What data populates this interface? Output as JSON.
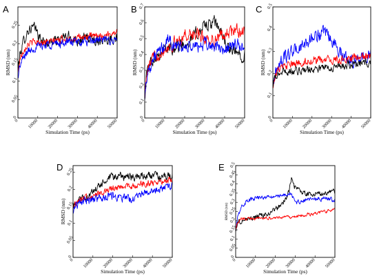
{
  "chart_data": [
    {
      "panel": "A",
      "type": "line",
      "xlabel": "Simulation Time (ps)",
      "ylabel": "RMSD (nm)",
      "xlim": [
        0,
        50000
      ],
      "ylim": [
        0,
        0.3
      ],
      "xticks": [
        0,
        10000,
        20000,
        30000,
        40000,
        50000
      ],
      "yticks": [
        0,
        0.05,
        0.1,
        0.15,
        0.2,
        0.25
      ],
      "grid": false,
      "series": [
        {
          "color": "#000000",
          "noise": 0.012,
          "x": [
            0,
            1000,
            3000,
            5000,
            7000,
            9000,
            11000,
            13000,
            16000,
            20000,
            25000,
            30000,
            35000,
            40000,
            45000,
            50000
          ],
          "y": [
            0.13,
            0.17,
            0.21,
            0.235,
            0.245,
            0.24,
            0.215,
            0.205,
            0.205,
            0.21,
            0.22,
            0.21,
            0.215,
            0.21,
            0.215,
            0.215
          ]
        },
        {
          "color": "#ff0000",
          "noise": 0.008,
          "x": [
            0,
            1000,
            3000,
            5000,
            8000,
            12000,
            16000,
            20000,
            25000,
            30000,
            35000,
            40000,
            45000,
            50000
          ],
          "y": [
            0.12,
            0.16,
            0.185,
            0.2,
            0.205,
            0.205,
            0.205,
            0.21,
            0.215,
            0.215,
            0.22,
            0.22,
            0.225,
            0.235
          ]
        },
        {
          "color": "#0000ff",
          "noise": 0.01,
          "x": [
            0,
            1000,
            3000,
            5000,
            8000,
            12000,
            16000,
            20000,
            25000,
            30000,
            35000,
            40000,
            45000,
            50000
          ],
          "y": [
            0.11,
            0.14,
            0.165,
            0.18,
            0.19,
            0.195,
            0.2,
            0.2,
            0.205,
            0.205,
            0.205,
            0.21,
            0.21,
            0.21
          ]
        }
      ]
    },
    {
      "panel": "B",
      "type": "line",
      "xlabel": "Simulation Time (ps)",
      "ylabel": "RMSD (nm)",
      "xlim": [
        0,
        50000
      ],
      "ylim": [
        0,
        0.7
      ],
      "xticks": [
        0,
        10000,
        20000,
        30000,
        40000,
        50000
      ],
      "yticks": [
        0,
        0.1,
        0.2,
        0.3,
        0.4,
        0.5,
        0.6,
        0.7
      ],
      "grid": false,
      "series": [
        {
          "color": "#000000",
          "noise": 0.035,
          "x": [
            0,
            1000,
            3000,
            6000,
            10000,
            15000,
            20000,
            25000,
            30000,
            35000,
            38000,
            42000,
            46000,
            50000
          ],
          "y": [
            0.15,
            0.28,
            0.36,
            0.4,
            0.43,
            0.45,
            0.47,
            0.52,
            0.58,
            0.6,
            0.55,
            0.43,
            0.41,
            0.4
          ]
        },
        {
          "color": "#ff0000",
          "noise": 0.035,
          "x": [
            0,
            1000,
            3000,
            6000,
            10000,
            15000,
            20000,
            25000,
            30000,
            35000,
            40000,
            45000,
            50000
          ],
          "y": [
            0.15,
            0.27,
            0.35,
            0.4,
            0.44,
            0.47,
            0.52,
            0.53,
            0.5,
            0.49,
            0.53,
            0.55,
            0.55
          ]
        },
        {
          "color": "#0000ff",
          "noise": 0.035,
          "x": [
            0,
            1000,
            3000,
            6000,
            10000,
            12000,
            15000,
            20000,
            25000,
            30000,
            35000,
            40000,
            45000,
            50000
          ],
          "y": [
            0.14,
            0.26,
            0.34,
            0.4,
            0.45,
            0.5,
            0.45,
            0.44,
            0.45,
            0.46,
            0.45,
            0.43,
            0.46,
            0.45
          ]
        }
      ]
    },
    {
      "panel": "C",
      "type": "line",
      "xlabel": "Simulation Time (ps)",
      "ylabel": "RMSD (nm)",
      "xlim": [
        0,
        50000
      ],
      "ylim": [
        0,
        0.5
      ],
      "xticks": [
        0,
        10000,
        20000,
        30000,
        40000,
        50000
      ],
      "yticks": [
        0,
        0.1,
        0.2,
        0.3,
        0.4,
        0.5
      ],
      "grid": false,
      "series": [
        {
          "color": "#0000ff",
          "noise": 0.025,
          "x": [
            0,
            1000,
            3000,
            6000,
            10000,
            15000,
            20000,
            25000,
            28000,
            32000,
            36000,
            40000,
            45000,
            50000
          ],
          "y": [
            0.15,
            0.2,
            0.24,
            0.27,
            0.3,
            0.32,
            0.36,
            0.38,
            0.37,
            0.33,
            0.28,
            0.26,
            0.27,
            0.29
          ]
        },
        {
          "color": "#ff0000",
          "noise": 0.015,
          "x": [
            0,
            1000,
            3000,
            6000,
            10000,
            15000,
            20000,
            25000,
            30000,
            35000,
            40000,
            45000,
            50000
          ],
          "y": [
            0.14,
            0.19,
            0.22,
            0.23,
            0.24,
            0.25,
            0.26,
            0.26,
            0.26,
            0.26,
            0.27,
            0.27,
            0.28
          ]
        },
        {
          "color": "#000000",
          "noise": 0.015,
          "x": [
            0,
            1000,
            3000,
            6000,
            10000,
            15000,
            20000,
            25000,
            30000,
            35000,
            40000,
            45000,
            50000
          ],
          "y": [
            0.14,
            0.18,
            0.2,
            0.21,
            0.21,
            0.215,
            0.22,
            0.225,
            0.23,
            0.23,
            0.24,
            0.245,
            0.25
          ]
        }
      ]
    },
    {
      "panel": "D",
      "type": "line",
      "xlabel": "Simulation Time (ps)",
      "ylabel": "RMSD (nm)",
      "xlim": [
        0,
        50000
      ],
      "ylim": [
        0,
        0.27
      ],
      "xticks": [
        0,
        10000,
        20000,
        30000,
        40000,
        50000
      ],
      "yticks": [
        0,
        0.05,
        0.1,
        0.15,
        0.2,
        0.25
      ],
      "grid": false,
      "series": [
        {
          "color": "#000000",
          "noise": 0.01,
          "x": [
            0,
            1000,
            3000,
            6000,
            10000,
            15000,
            20000,
            25000,
            30000,
            35000,
            40000,
            45000,
            50000
          ],
          "y": [
            0.14,
            0.16,
            0.17,
            0.175,
            0.19,
            0.22,
            0.235,
            0.24,
            0.235,
            0.24,
            0.24,
            0.235,
            0.24
          ]
        },
        {
          "color": "#ff0000",
          "noise": 0.008,
          "x": [
            0,
            1000,
            3000,
            6000,
            10000,
            15000,
            20000,
            25000,
            30000,
            35000,
            40000,
            45000,
            50000
          ],
          "y": [
            0.14,
            0.16,
            0.17,
            0.175,
            0.18,
            0.19,
            0.2,
            0.21,
            0.21,
            0.215,
            0.22,
            0.225,
            0.23
          ]
        },
        {
          "color": "#0000ff",
          "noise": 0.01,
          "x": [
            0,
            1000,
            3000,
            6000,
            10000,
            15000,
            20000,
            25000,
            30000,
            35000,
            40000,
            45000,
            50000
          ],
          "y": [
            0.13,
            0.15,
            0.16,
            0.165,
            0.17,
            0.175,
            0.18,
            0.175,
            0.17,
            0.19,
            0.2,
            0.205,
            0.21
          ]
        }
      ]
    },
    {
      "panel": "E",
      "type": "line",
      "xlabel": "Simulation Time (ps)",
      "ylabel": "RMSD (nm)",
      "xlim": [
        0,
        50000
      ],
      "ylim": [
        0,
        0.5
      ],
      "xticks": [
        0,
        10000,
        20000,
        30000,
        40000,
        50000
      ],
      "yticks": [
        0,
        0.05,
        0.1,
        0.15,
        0.2,
        0.25,
        0.3,
        0.35,
        0.4,
        0.45,
        0.5
      ],
      "grid": false,
      "series": [
        {
          "color": "#000000",
          "noise": 0.012,
          "x": [
            0,
            1000,
            3000,
            6000,
            10000,
            15000,
            20000,
            24000,
            27000,
            28000,
            30000,
            33000,
            36000,
            40000,
            45000,
            50000
          ],
          "y": [
            0.15,
            0.19,
            0.2,
            0.21,
            0.22,
            0.23,
            0.26,
            0.3,
            0.36,
            0.43,
            0.38,
            0.36,
            0.34,
            0.35,
            0.35,
            0.36
          ]
        },
        {
          "color": "#0000ff",
          "noise": 0.01,
          "x": [
            0,
            1000,
            3000,
            6000,
            10000,
            15000,
            20000,
            25000,
            28000,
            30000,
            35000,
            40000,
            45000,
            50000
          ],
          "y": [
            0.15,
            0.23,
            0.28,
            0.31,
            0.32,
            0.33,
            0.33,
            0.34,
            0.35,
            0.3,
            0.31,
            0.32,
            0.32,
            0.31
          ]
        },
        {
          "color": "#ff0000",
          "noise": 0.007,
          "x": [
            0,
            1000,
            3000,
            6000,
            10000,
            15000,
            20000,
            25000,
            30000,
            35000,
            40000,
            45000,
            50000
          ],
          "y": [
            0.15,
            0.19,
            0.21,
            0.21,
            0.21,
            0.215,
            0.215,
            0.22,
            0.22,
            0.23,
            0.24,
            0.25,
            0.26
          ]
        }
      ]
    }
  ]
}
